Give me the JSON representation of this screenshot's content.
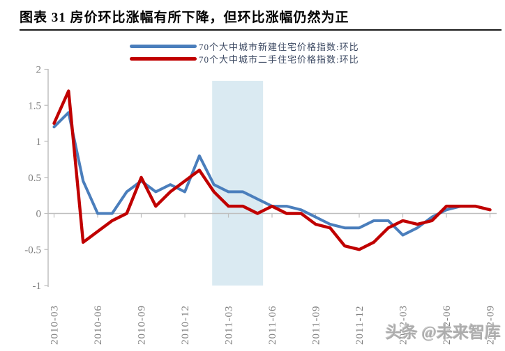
{
  "page": {
    "title": "图表 31 房价环比涨幅有所下降，但环比涨幅仍然为正",
    "watermark": "头条 @未来智库"
  },
  "chart_data": {
    "type": "line",
    "title": "图表 31 房价环比涨幅有所下降，但环比涨幅仍然为正",
    "xlabel": "",
    "ylabel": "",
    "ylim": [
      -1,
      2
    ],
    "y_ticks": [
      2,
      1.5,
      1,
      0.5,
      0,
      -0.5,
      -1
    ],
    "grid": "zero-line-only",
    "legend_position": "top-center",
    "x": [
      "2010-03",
      "2010-04",
      "2010-05",
      "2010-06",
      "2010-07",
      "2010-08",
      "2010-09",
      "2010-10",
      "2010-11",
      "2010-12",
      "2011-01",
      "2011-02",
      "2011-03",
      "2011-04",
      "2011-05",
      "2011-06",
      "2011-07",
      "2011-08",
      "2011-09",
      "2011-10",
      "2011-11",
      "2011-12",
      "2012-01",
      "2012-02",
      "2012-03",
      "2012-04",
      "2012-05",
      "2012-06",
      "2012-07",
      "2012-08",
      "2012-09"
    ],
    "x_tick_labels": [
      "2010-03",
      "2010-06",
      "2010-09",
      "2010-12",
      "2011-03",
      "2011-06",
      "2011-09",
      "2011-12",
      "2012-03",
      "2012-06",
      "2012-09"
    ],
    "series": [
      {
        "name": "70个大中城市新建住宅价格指数:环比",
        "color": "#4a7ebc",
        "values": [
          1.2,
          1.4,
          0.45,
          0.0,
          0.0,
          0.3,
          0.45,
          0.3,
          0.4,
          0.3,
          0.8,
          0.4,
          0.3,
          0.3,
          0.2,
          0.1,
          0.1,
          0.05,
          -0.05,
          -0.15,
          -0.2,
          -0.2,
          -0.1,
          -0.1,
          -0.3,
          -0.2,
          -0.05,
          0.05,
          0.1,
          0.1,
          0.05
        ]
      },
      {
        "name": "70个大中城市二手住宅价格指数:环比",
        "color": "#c00000",
        "values": [
          1.25,
          1.7,
          -0.4,
          -0.25,
          -0.1,
          0.0,
          0.5,
          0.1,
          0.3,
          0.45,
          0.6,
          0.3,
          0.1,
          0.1,
          0.0,
          0.1,
          0.0,
          0.0,
          -0.15,
          -0.2,
          -0.45,
          -0.5,
          -0.4,
          -0.2,
          -0.1,
          -0.15,
          -0.1,
          0.1,
          0.1,
          0.1,
          0.05
        ]
      }
    ],
    "highlight_band": {
      "start_x": "2011-02",
      "end_x": "2011-05",
      "color": "#daeaf2"
    },
    "axis_color": "#bfbfbf",
    "label_color": "#7f7f7f"
  }
}
